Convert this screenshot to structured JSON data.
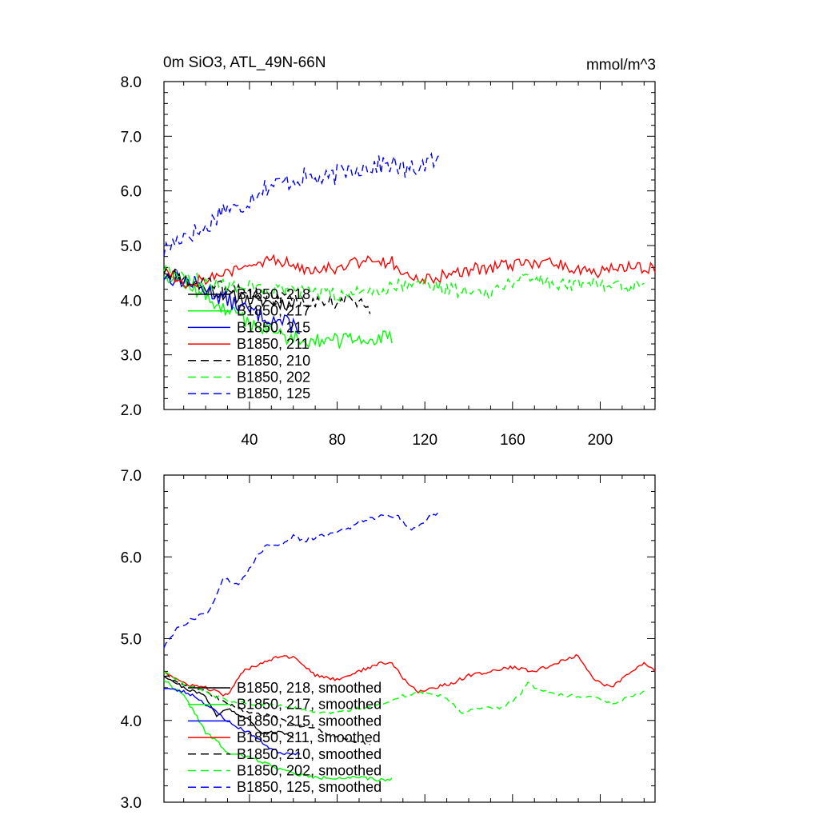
{
  "figure": {
    "title": "0m SiO3, ATL_49N-66N",
    "units": "mmol/m^3"
  },
  "chart_data": [
    {
      "type": "line",
      "panel": "top",
      "title": "0m SiO3, ATL_49N-66N",
      "units": "mmol/m^3",
      "xlim": [
        1,
        225
      ],
      "ylim": [
        2.0,
        8.0
      ],
      "xticks": [
        40,
        80,
        120,
        160,
        200
      ],
      "xtick_labels": [
        "40",
        "80",
        "120",
        "160",
        "200"
      ],
      "yticks": [
        2.0,
        3.0,
        4.0,
        5.0,
        6.0,
        7.0,
        8.0
      ],
      "ytick_labels": [
        "2.0",
        "3.0",
        "4.0",
        "5.0",
        "6.0",
        "7.0",
        "8.0"
      ],
      "legend_position": "lower-left",
      "series": [
        {
          "name": "B1850, 218",
          "color": "#000000",
          "dash": "solid",
          "noise": 0.12,
          "seed": 11,
          "points": [
            [
              1,
              4.55
            ],
            [
              20,
              4.2
            ],
            [
              40,
              4.0
            ],
            [
              55,
              3.95
            ],
            [
              60,
              3.9
            ]
          ]
        },
        {
          "name": "B1850, 217",
          "color": "#00ff00",
          "dash": "solid",
          "noise": 0.14,
          "seed": 12,
          "points": [
            [
              1,
              4.5
            ],
            [
              15,
              4.2
            ],
            [
              30,
              3.8
            ],
            [
              45,
              3.5
            ],
            [
              60,
              3.3
            ],
            [
              80,
              3.25
            ],
            [
              95,
              3.3
            ],
            [
              105,
              3.3
            ]
          ]
        },
        {
          "name": "B1850, 215",
          "color": "#0000ff",
          "dash": "solid",
          "noise": 0.15,
          "seed": 13,
          "points": [
            [
              1,
              4.45
            ],
            [
              15,
              4.3
            ],
            [
              25,
              4.1
            ],
            [
              40,
              3.8
            ],
            [
              55,
              3.6
            ],
            [
              63,
              3.5
            ]
          ]
        },
        {
          "name": "B1850, 211",
          "color": "#ff0000",
          "dash": "solid",
          "noise": 0.12,
          "seed": 14,
          "points": [
            [
              1,
              4.6
            ],
            [
              10,
              4.3
            ],
            [
              20,
              4.4
            ],
            [
              35,
              4.55
            ],
            [
              50,
              4.75
            ],
            [
              65,
              4.6
            ],
            [
              80,
              4.6
            ],
            [
              95,
              4.75
            ],
            [
              105,
              4.7
            ],
            [
              115,
              4.35
            ],
            [
              125,
              4.4
            ],
            [
              140,
              4.55
            ],
            [
              160,
              4.65
            ],
            [
              180,
              4.7
            ],
            [
              195,
              4.5
            ],
            [
              210,
              4.6
            ],
            [
              225,
              4.6
            ]
          ]
        },
        {
          "name": "B1850, 210",
          "color": "#000000",
          "dash": "dashed",
          "noise": 0.13,
          "seed": 15,
          "points": [
            [
              1,
              4.55
            ],
            [
              15,
              4.35
            ],
            [
              30,
              4.2
            ],
            [
              50,
              4.05
            ],
            [
              70,
              3.95
            ],
            [
              85,
              4.0
            ],
            [
              95,
              3.85
            ]
          ]
        },
        {
          "name": "B1850, 202",
          "color": "#00ff00",
          "dash": "dashed",
          "noise": 0.13,
          "seed": 16,
          "points": [
            [
              1,
              4.6
            ],
            [
              20,
              4.3
            ],
            [
              40,
              4.25
            ],
            [
              60,
              4.15
            ],
            [
              80,
              4.1
            ],
            [
              100,
              4.2
            ],
            [
              115,
              4.35
            ],
            [
              130,
              4.2
            ],
            [
              150,
              4.15
            ],
            [
              165,
              4.45
            ],
            [
              180,
              4.3
            ],
            [
              200,
              4.3
            ],
            [
              215,
              4.25
            ],
            [
              220,
              4.35
            ]
          ]
        },
        {
          "name": "B1850, 125",
          "color": "#0000ff",
          "dash": "dashed",
          "noise": 0.18,
          "seed": 17,
          "points": [
            [
              1,
              4.9
            ],
            [
              10,
              5.2
            ],
            [
              20,
              5.3
            ],
            [
              28,
              5.7
            ],
            [
              35,
              5.65
            ],
            [
              45,
              6.05
            ],
            [
              55,
              6.15
            ],
            [
              65,
              6.25
            ],
            [
              75,
              6.2
            ],
            [
              85,
              6.4
            ],
            [
              95,
              6.45
            ],
            [
              105,
              6.5
            ],
            [
              112,
              6.35
            ],
            [
              120,
              6.5
            ],
            [
              127,
              6.55
            ]
          ]
        }
      ]
    },
    {
      "type": "line",
      "panel": "bottom",
      "xlim": [
        1,
        225
      ],
      "ylim": [
        3.0,
        7.0
      ],
      "xticks": [
        40,
        80,
        120,
        160,
        200
      ],
      "yticks": [
        3.0,
        4.0,
        5.0,
        6.0,
        7.0
      ],
      "ytick_labels": [
        "3.0",
        "4.0",
        "5.0",
        "6.0",
        "7.0"
      ],
      "legend_position": "lower-left",
      "series": [
        {
          "name": "B1850, 218, smoothed",
          "color": "#000000",
          "dash": "solid",
          "noise": 0.02,
          "seed": 21,
          "points": [
            [
              1,
              4.55
            ],
            [
              10,
              4.4
            ],
            [
              20,
              4.3
            ],
            [
              25,
              4.05
            ],
            [
              30,
              4.15
            ],
            [
              40,
              4.0
            ],
            [
              45,
              3.85
            ],
            [
              55,
              3.85
            ],
            [
              60,
              3.8
            ]
          ]
        },
        {
          "name": "B1850, 217, smoothed",
          "color": "#00ff00",
          "dash": "solid",
          "noise": 0.02,
          "seed": 22,
          "points": [
            [
              1,
              4.5
            ],
            [
              10,
              4.3
            ],
            [
              15,
              4.1
            ],
            [
              20,
              3.85
            ],
            [
              25,
              3.75
            ],
            [
              30,
              3.6
            ],
            [
              40,
              3.55
            ],
            [
              50,
              3.45
            ],
            [
              60,
              3.35
            ],
            [
              70,
              3.3
            ],
            [
              80,
              3.3
            ],
            [
              90,
              3.3
            ],
            [
              100,
              3.27
            ],
            [
              105,
              3.28
            ]
          ]
        },
        {
          "name": "B1850, 215, smoothed",
          "color": "#0000ff",
          "dash": "solid",
          "noise": 0.02,
          "seed": 23,
          "points": [
            [
              1,
              4.4
            ],
            [
              10,
              4.35
            ],
            [
              15,
              4.3
            ],
            [
              25,
              4.1
            ],
            [
              32,
              3.95
            ],
            [
              40,
              3.85
            ],
            [
              50,
              3.65
            ],
            [
              55,
              3.6
            ],
            [
              63,
              3.6
            ]
          ]
        },
        {
          "name": "B1850, 211, smoothed",
          "color": "#ff0000",
          "dash": "solid",
          "noise": 0.02,
          "seed": 24,
          "points": [
            [
              1,
              4.6
            ],
            [
              10,
              4.45
            ],
            [
              20,
              4.4
            ],
            [
              30,
              4.3
            ],
            [
              37,
              4.6
            ],
            [
              45,
              4.7
            ],
            [
              55,
              4.8
            ],
            [
              62,
              4.75
            ],
            [
              70,
              4.55
            ],
            [
              80,
              4.5
            ],
            [
              90,
              4.6
            ],
            [
              100,
              4.7
            ],
            [
              105,
              4.7
            ],
            [
              112,
              4.45
            ],
            [
              117,
              4.35
            ],
            [
              124,
              4.4
            ],
            [
              132,
              4.45
            ],
            [
              140,
              4.55
            ],
            [
              150,
              4.6
            ],
            [
              160,
              4.65
            ],
            [
              170,
              4.6
            ],
            [
              180,
              4.7
            ],
            [
              190,
              4.8
            ],
            [
              197,
              4.5
            ],
            [
              205,
              4.4
            ],
            [
              212,
              4.55
            ],
            [
              220,
              4.7
            ],
            [
              225,
              4.6
            ]
          ]
        },
        {
          "name": "B1850, 210, smoothed",
          "color": "#000000",
          "dash": "dashed",
          "noise": 0.02,
          "seed": 25,
          "points": [
            [
              1,
              4.55
            ],
            [
              10,
              4.45
            ],
            [
              20,
              4.35
            ],
            [
              30,
              4.2
            ],
            [
              40,
              4.1
            ],
            [
              50,
              4.05
            ],
            [
              60,
              3.95
            ],
            [
              70,
              3.9
            ],
            [
              80,
              3.8
            ],
            [
              88,
              3.75
            ],
            [
              95,
              3.7
            ]
          ]
        },
        {
          "name": "B1850, 202, smoothed",
          "color": "#00ff00",
          "dash": "dashed",
          "noise": 0.02,
          "seed": 26,
          "points": [
            [
              1,
              4.6
            ],
            [
              10,
              4.45
            ],
            [
              20,
              4.35
            ],
            [
              30,
              4.25
            ],
            [
              40,
              4.2
            ],
            [
              50,
              4.2
            ],
            [
              60,
              4.15
            ],
            [
              70,
              4.1
            ],
            [
              80,
              4.1
            ],
            [
              90,
              4.15
            ],
            [
              100,
              4.2
            ],
            [
              110,
              4.3
            ],
            [
              120,
              4.35
            ],
            [
              128,
              4.3
            ],
            [
              137,
              4.1
            ],
            [
              145,
              4.15
            ],
            [
              155,
              4.15
            ],
            [
              163,
              4.3
            ],
            [
              167,
              4.45
            ],
            [
              175,
              4.35
            ],
            [
              185,
              4.3
            ],
            [
              195,
              4.3
            ],
            [
              205,
              4.2
            ],
            [
              215,
              4.3
            ],
            [
              220,
              4.35
            ]
          ]
        },
        {
          "name": "B1850, 125, smoothed",
          "color": "#0000ff",
          "dash": "dashed",
          "noise": 0.025,
          "seed": 27,
          "points": [
            [
              1,
              4.9
            ],
            [
              8,
              5.15
            ],
            [
              15,
              5.25
            ],
            [
              22,
              5.35
            ],
            [
              28,
              5.75
            ],
            [
              35,
              5.65
            ],
            [
              42,
              5.95
            ],
            [
              48,
              6.15
            ],
            [
              55,
              6.15
            ],
            [
              60,
              6.25
            ],
            [
              65,
              6.2
            ],
            [
              72,
              6.25
            ],
            [
              78,
              6.3
            ],
            [
              85,
              6.35
            ],
            [
              92,
              6.45
            ],
            [
              100,
              6.5
            ],
            [
              108,
              6.5
            ],
            [
              112,
              6.35
            ],
            [
              117,
              6.35
            ],
            [
              122,
              6.5
            ],
            [
              127,
              6.55
            ]
          ]
        }
      ]
    }
  ]
}
